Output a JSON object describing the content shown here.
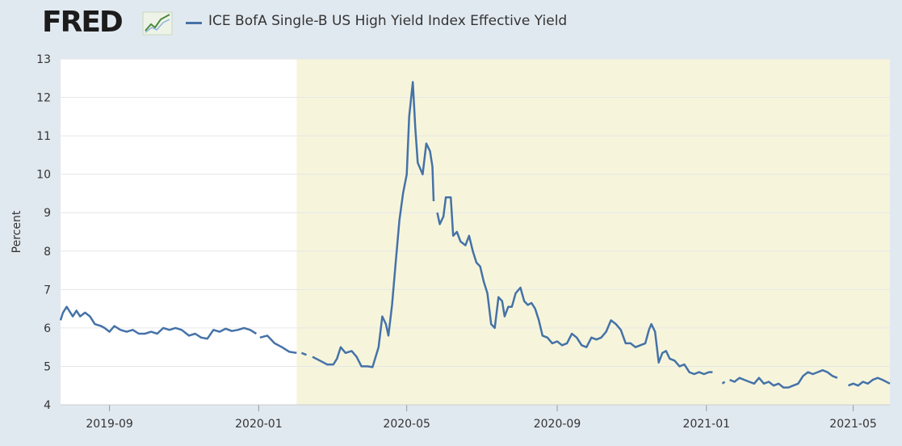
{
  "header": {
    "logo_text": "FRED",
    "logo_icon": "fred-trend-graph-icon",
    "series_label": "ICE BofA Single-B US High Yield Index Effective Yield"
  },
  "colors": {
    "background": "#e1e9f0",
    "plot_background": "#ffffff",
    "recession_shade": "#f6f5dc",
    "line": "#4572a7",
    "grid": "#e6e6e6"
  },
  "chart_data": {
    "type": "line",
    "title": "",
    "ylabel": "Percent",
    "xlabel": "",
    "ylim": [
      4,
      13
    ],
    "xlim": [
      "2019-07-23",
      "2021-05-31"
    ],
    "y_ticks": [
      4,
      5,
      6,
      7,
      8,
      9,
      10,
      11,
      12,
      13
    ],
    "x_ticks": [
      "2019-09",
      "2020-01",
      "2020-05",
      "2020-09",
      "2021-01",
      "2021-05"
    ],
    "shaded_region": {
      "start": "2020-02-01",
      "end": "2021-05-31"
    },
    "grid": true,
    "legend": "top",
    "series": [
      {
        "name": "ICE BofA Single-B US High Yield Index Effective Yield",
        "values": [
          [
            "2019-07-23",
            6.2
          ],
          [
            "2019-07-25",
            6.4
          ],
          [
            "2019-07-28",
            6.55
          ],
          [
            "2019-07-30",
            6.45
          ],
          [
            "2019-08-02",
            6.3
          ],
          [
            "2019-08-05",
            6.45
          ],
          [
            "2019-08-08",
            6.3
          ],
          [
            "2019-08-12",
            6.4
          ],
          [
            "2019-08-16",
            6.3
          ],
          [
            "2019-08-20",
            6.1
          ],
          [
            "2019-08-25",
            6.05
          ],
          [
            "2019-08-28",
            6.0
          ],
          [
            "2019-09-01",
            5.9
          ],
          [
            "2019-09-05",
            6.05
          ],
          [
            "2019-09-10",
            5.95
          ],
          [
            "2019-09-15",
            5.9
          ],
          [
            "2019-09-20",
            5.95
          ],
          [
            "2019-09-25",
            5.85
          ],
          [
            "2019-09-30",
            5.85
          ],
          [
            "2019-10-05",
            5.9
          ],
          [
            "2019-10-10",
            5.85
          ],
          [
            "2019-10-15",
            6.0
          ],
          [
            "2019-10-20",
            5.95
          ],
          [
            "2019-10-25",
            6.0
          ],
          [
            "2019-10-30",
            5.95
          ],
          [
            "2019-11-05",
            5.8
          ],
          [
            "2019-11-10",
            5.85
          ],
          [
            "2019-11-15",
            5.75
          ],
          [
            "2019-11-20",
            5.72
          ],
          [
            "2019-11-25",
            5.95
          ],
          [
            "2019-11-30",
            5.9
          ],
          [
            "2019-12-05",
            5.98
          ],
          [
            "2019-12-10",
            5.92
          ],
          [
            "2019-12-15",
            5.95
          ],
          [
            "2019-12-20",
            6.0
          ],
          [
            "2019-12-25",
            5.95
          ],
          [
            "2019-12-30",
            5.85
          ],
          null,
          [
            "2020-01-02",
            5.75
          ],
          [
            "2020-01-08",
            5.8
          ],
          [
            "2020-01-14",
            5.6
          ],
          [
            "2020-01-20",
            5.5
          ],
          [
            "2020-01-26",
            5.38
          ],
          [
            "2020-02-01",
            5.35
          ],
          null,
          [
            "2020-02-05",
            5.35
          ],
          [
            "2020-02-09",
            5.3
          ],
          null,
          [
            "2020-02-14",
            5.25
          ],
          [
            "2020-02-20",
            5.15
          ],
          [
            "2020-02-26",
            5.05
          ],
          [
            "2020-03-02",
            5.05
          ],
          [
            "2020-03-05",
            5.2
          ],
          [
            "2020-03-08",
            5.5
          ],
          [
            "2020-03-12",
            5.35
          ],
          [
            "2020-03-17",
            5.4
          ],
          [
            "2020-03-21",
            5.25
          ],
          [
            "2020-03-25",
            5.0
          ],
          [
            "2020-03-30",
            5.0
          ],
          [
            "2020-04-03",
            4.98
          ],
          [
            "2020-04-08",
            5.5
          ],
          [
            "2020-04-11",
            6.3
          ],
          [
            "2020-04-14",
            6.1
          ],
          [
            "2020-04-16",
            5.8
          ],
          [
            "2020-04-19",
            6.6
          ],
          [
            "2020-04-22",
            7.7
          ],
          [
            "2020-04-25",
            8.8
          ],
          [
            "2020-04-28",
            9.5
          ],
          [
            "2020-05-01",
            10.0
          ],
          [
            "2020-05-03",
            11.5
          ],
          [
            "2020-05-06",
            12.4
          ],
          [
            "2020-05-08",
            11.2
          ],
          [
            "2020-05-10",
            10.3
          ],
          [
            "2020-05-14",
            10.0
          ],
          [
            "2020-05-17",
            10.8
          ],
          [
            "2020-05-20",
            10.6
          ],
          [
            "2020-05-22",
            10.2
          ],
          [
            "2020-05-23",
            9.3
          ],
          null,
          [
            "2020-05-26",
            9.0
          ],
          [
            "2020-05-28",
            8.7
          ],
          [
            "2020-05-31",
            8.9
          ],
          [
            "2020-06-02",
            9.4
          ],
          [
            "2020-06-06",
            9.4
          ],
          [
            "2020-06-08",
            8.4
          ],
          [
            "2020-06-11",
            8.5
          ],
          [
            "2020-06-14",
            8.25
          ],
          [
            "2020-06-18",
            8.15
          ],
          [
            "2020-06-21",
            8.4
          ],
          [
            "2020-06-24",
            8.0
          ],
          [
            "2020-06-27",
            7.7
          ],
          [
            "2020-06-30",
            7.6
          ],
          [
            "2020-07-03",
            7.2
          ],
          [
            "2020-07-06",
            6.9
          ],
          [
            "2020-07-09",
            6.1
          ],
          [
            "2020-07-12",
            6.0
          ],
          [
            "2020-07-15",
            6.8
          ],
          [
            "2020-07-18",
            6.7
          ],
          [
            "2020-07-20",
            6.3
          ],
          [
            "2020-07-23",
            6.55
          ],
          [
            "2020-07-26",
            6.55
          ],
          [
            "2020-07-29",
            6.9
          ],
          [
            "2020-08-02",
            7.05
          ],
          [
            "2020-08-05",
            6.7
          ],
          [
            "2020-08-08",
            6.6
          ],
          [
            "2020-08-11",
            6.65
          ],
          [
            "2020-08-14",
            6.5
          ],
          [
            "2020-08-17",
            6.2
          ],
          [
            "2020-08-20",
            5.8
          ],
          [
            "2020-08-24",
            5.75
          ],
          [
            "2020-08-28",
            5.6
          ],
          [
            "2020-09-01",
            5.65
          ],
          [
            "2020-09-05",
            5.55
          ],
          [
            "2020-09-09",
            5.6
          ],
          [
            "2020-09-13",
            5.85
          ],
          [
            "2020-09-17",
            5.75
          ],
          [
            "2020-09-21",
            5.55
          ],
          [
            "2020-09-25",
            5.5
          ],
          [
            "2020-09-29",
            5.75
          ],
          [
            "2020-10-03",
            5.7
          ],
          [
            "2020-10-07",
            5.75
          ],
          [
            "2020-10-11",
            5.9
          ],
          [
            "2020-10-15",
            6.2
          ],
          [
            "2020-10-19",
            6.1
          ],
          [
            "2020-10-23",
            5.95
          ],
          [
            "2020-10-27",
            5.6
          ],
          [
            "2020-10-31",
            5.6
          ],
          [
            "2020-11-04",
            5.5
          ],
          [
            "2020-11-08",
            5.55
          ],
          [
            "2020-11-12",
            5.6
          ],
          [
            "2020-11-15",
            5.95
          ],
          [
            "2020-11-17",
            6.1
          ],
          [
            "2020-11-20",
            5.9
          ],
          [
            "2020-11-23",
            5.1
          ],
          [
            "2020-11-26",
            5.35
          ],
          [
            "2020-11-29",
            5.4
          ],
          [
            "2020-12-02",
            5.2
          ],
          [
            "2020-12-06",
            5.15
          ],
          [
            "2020-12-10",
            5.0
          ],
          [
            "2020-12-14",
            5.05
          ],
          [
            "2020-12-18",
            4.85
          ],
          [
            "2020-12-22",
            4.8
          ],
          [
            "2020-12-26",
            4.85
          ],
          [
            "2020-12-30",
            4.8
          ],
          [
            "2021-01-03",
            4.85
          ],
          [
            "2021-01-06",
            4.85
          ],
          null,
          [
            "2021-01-14",
            4.55
          ],
          [
            "2021-01-16",
            4.6
          ],
          null,
          [
            "2021-01-20",
            4.65
          ],
          [
            "2021-01-24",
            4.6
          ],
          [
            "2021-01-28",
            4.7
          ],
          [
            "2021-02-01",
            4.65
          ],
          [
            "2021-02-05",
            4.6
          ],
          [
            "2021-02-09",
            4.55
          ],
          [
            "2021-02-13",
            4.7
          ],
          [
            "2021-02-17",
            4.55
          ],
          [
            "2021-02-21",
            4.6
          ],
          [
            "2021-02-25",
            4.5
          ],
          [
            "2021-03-01",
            4.55
          ],
          [
            "2021-03-05",
            4.45
          ],
          [
            "2021-03-09",
            4.45
          ],
          [
            "2021-03-13",
            4.5
          ],
          [
            "2021-03-17",
            4.55
          ],
          [
            "2021-03-21",
            4.75
          ],
          [
            "2021-03-25",
            4.85
          ],
          [
            "2021-03-29",
            4.8
          ],
          [
            "2021-04-02",
            4.85
          ],
          [
            "2021-04-06",
            4.9
          ],
          [
            "2021-04-10",
            4.85
          ],
          [
            "2021-04-14",
            4.75
          ],
          [
            "2021-04-18",
            4.7
          ],
          null,
          [
            "2021-04-27",
            4.5
          ],
          [
            "2021-05-01",
            4.55
          ],
          [
            "2021-05-05",
            4.5
          ],
          [
            "2021-05-09",
            4.6
          ],
          [
            "2021-05-13",
            4.55
          ],
          [
            "2021-05-17",
            4.65
          ],
          [
            "2021-05-21",
            4.7
          ],
          [
            "2021-05-25",
            4.65
          ],
          [
            "2021-05-31",
            4.55
          ]
        ]
      }
    ]
  }
}
